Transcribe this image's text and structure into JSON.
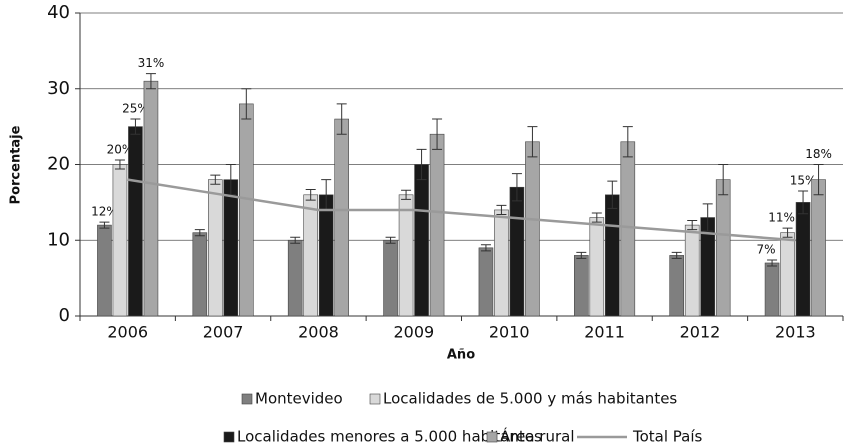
{
  "chart_data": {
    "type": "bar",
    "x_label": "Año",
    "y_label": "Porcentaje",
    "categories": [
      "2006",
      "2007",
      "2008",
      "2009",
      "2010",
      "2011",
      "2012",
      "2013"
    ],
    "ylim": [
      0,
      40
    ],
    "yticks": [
      0,
      10,
      20,
      30,
      40
    ],
    "grid": true,
    "series": [
      {
        "name": "Montevideo",
        "color": "#7f7f7f",
        "values": [
          12,
          11,
          10,
          10,
          9,
          8,
          8,
          7
        ],
        "errors": [
          0.4,
          0.4,
          0.4,
          0.4,
          0.4,
          0.4,
          0.4,
          0.4
        ],
        "value_labels": [
          "12%",
          null,
          null,
          null,
          null,
          null,
          null,
          "7%"
        ]
      },
      {
        "name": "Localidades de 5.000 y más habitantes",
        "color": "#d9d9d9",
        "values": [
          20,
          18,
          16,
          16,
          14,
          13,
          12,
          11
        ],
        "errors": [
          0.6,
          0.6,
          0.7,
          0.6,
          0.6,
          0.6,
          0.6,
          0.6
        ],
        "value_labels": [
          "20%",
          null,
          null,
          null,
          null,
          null,
          null,
          "11%"
        ]
      },
      {
        "name": "Localidades menores a 5.000 habitantes",
        "color": "#1a1a1a",
        "values": [
          25,
          18,
          16,
          20,
          17,
          16,
          13,
          15
        ],
        "errors": [
          1,
          2,
          2,
          2,
          1.8,
          1.8,
          1.8,
          1.5
        ],
        "value_labels": [
          "25%",
          null,
          null,
          null,
          null,
          null,
          null,
          "15%"
        ]
      },
      {
        "name": "Área rural",
        "color": "#a6a6a6",
        "values": [
          31,
          28,
          26,
          24,
          23,
          23,
          18,
          18
        ],
        "errors": [
          1,
          2,
          2,
          2,
          2,
          2,
          2,
          2
        ],
        "value_labels": [
          "31%",
          null,
          null,
          null,
          null,
          null,
          null,
          "18%"
        ]
      },
      {
        "name": "Total País",
        "type": "line",
        "color": "#9a9a9a",
        "values": [
          18,
          16,
          14,
          14,
          13,
          12,
          11,
          10
        ]
      }
    ]
  }
}
